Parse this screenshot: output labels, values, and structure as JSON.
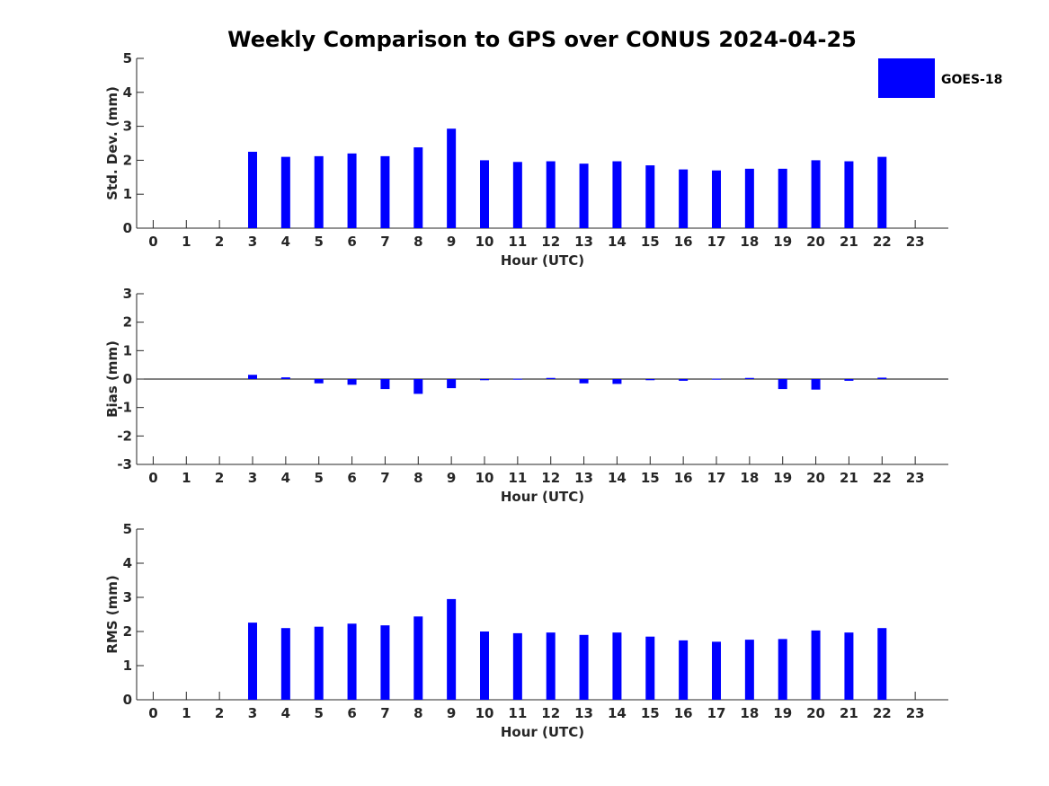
{
  "chart_data": {
    "type": "bar",
    "title": "Weekly Comparison to GPS over CONUS 2024-04-25",
    "legend": {
      "label": "GOES-18",
      "color": "#0000FF",
      "placement": "top-right"
    },
    "categories": [
      "0",
      "1",
      "2",
      "3",
      "4",
      "5",
      "6",
      "7",
      "8",
      "9",
      "10",
      "11",
      "12",
      "13",
      "14",
      "15",
      "16",
      "17",
      "18",
      "19",
      "20",
      "21",
      "22",
      "23"
    ],
    "panels": [
      {
        "name": "std-dev",
        "ylabel": "Std. Dev. (mm)",
        "xlabel": "Hour (UTC)",
        "ylim": [
          0,
          5
        ],
        "yticks": [
          "0",
          "1",
          "2",
          "3",
          "4",
          "5"
        ],
        "values": [
          null,
          null,
          null,
          2.25,
          2.1,
          2.12,
          2.2,
          2.12,
          2.38,
          2.93,
          2.0,
          1.95,
          1.97,
          1.9,
          1.97,
          1.85,
          1.73,
          1.7,
          1.75,
          1.75,
          2.0,
          1.97,
          2.1,
          null
        ]
      },
      {
        "name": "bias",
        "ylabel": "Bias (mm)",
        "xlabel": "Hour (UTC)",
        "ylim": [
          -3,
          3
        ],
        "yticks": [
          "-3",
          "-2",
          "-1",
          "0",
          "1",
          "2",
          "3"
        ],
        "values": [
          null,
          null,
          null,
          0.15,
          0.06,
          -0.15,
          -0.2,
          -0.35,
          -0.52,
          -0.32,
          -0.04,
          0.01,
          0.04,
          -0.15,
          -0.17,
          -0.04,
          -0.06,
          0.01,
          0.04,
          -0.35,
          -0.37,
          -0.06,
          0.05,
          null
        ]
      },
      {
        "name": "rms",
        "ylabel": "RMS (mm)",
        "xlabel": "Hour (UTC)",
        "ylim": [
          0,
          5
        ],
        "yticks": [
          "0",
          "1",
          "2",
          "3",
          "4",
          "5"
        ],
        "values": [
          null,
          null,
          null,
          2.26,
          2.1,
          2.14,
          2.23,
          2.18,
          2.44,
          2.95,
          2.0,
          1.95,
          1.97,
          1.9,
          1.97,
          1.85,
          1.74,
          1.7,
          1.76,
          1.78,
          2.03,
          1.97,
          2.1,
          null
        ]
      }
    ]
  }
}
